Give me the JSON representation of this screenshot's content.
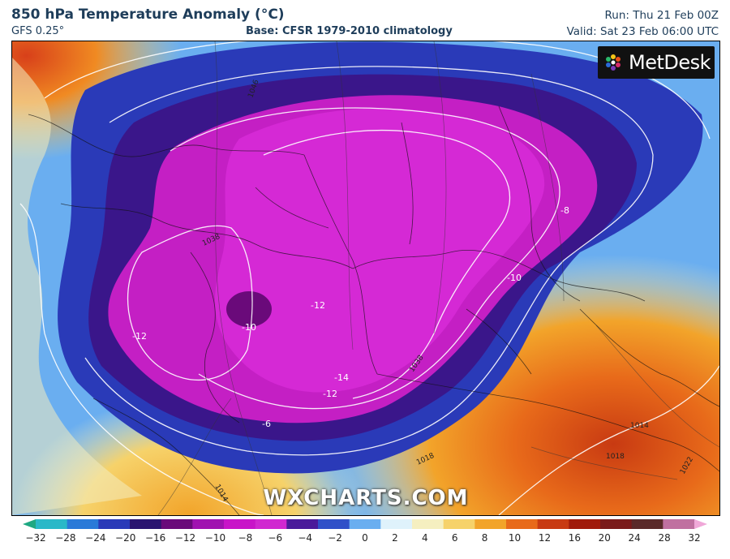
{
  "header": {
    "title": "850 hPa Temperature Anomaly (°C)",
    "model": "GFS 0.25°",
    "base": "Base: CFSR 1979-2010 climatology",
    "run": "Run: Thu 21 Feb 00Z",
    "valid": "Valid: Sat 23 Feb 06:00 UTC"
  },
  "logo": {
    "text": "MetDesk"
  },
  "watermark": "WXCHARTS.COM",
  "colorbar": {
    "ticks": [
      "−32",
      "−28",
      "−24",
      "−20",
      "−16",
      "−12",
      "−10",
      "−8",
      "−6",
      "−4",
      "−2",
      "0",
      "2",
      "4",
      "6",
      "8",
      "10",
      "12",
      "16",
      "20",
      "24",
      "28",
      "32"
    ],
    "colors": [
      "#1ea882",
      "#2ab8c8",
      "#2a7ad8",
      "#2a3ab8",
      "#2a1470",
      "#6a0a7a",
      "#a012b0",
      "#c814c8",
      "#d028d0",
      "#4a1a9a",
      "#3050c8",
      "#6aaef0",
      "#dff2fb",
      "#f5efc0",
      "#f6d26a",
      "#f2a42a",
      "#e86a1a",
      "#c83a12",
      "#a01a0a",
      "#7a1a1a",
      "#5a2a2a",
      "#c070a0",
      "#f0a8d8"
    ]
  },
  "map_labels": {
    "contour_values": [
      "-12",
      "-10",
      "-12",
      "-14",
      "-12",
      "-10",
      "-8",
      "-6",
      "1038",
      "1038",
      "1014",
      "1018",
      "1022",
      "1018",
      "1014",
      "1046"
    ]
  }
}
